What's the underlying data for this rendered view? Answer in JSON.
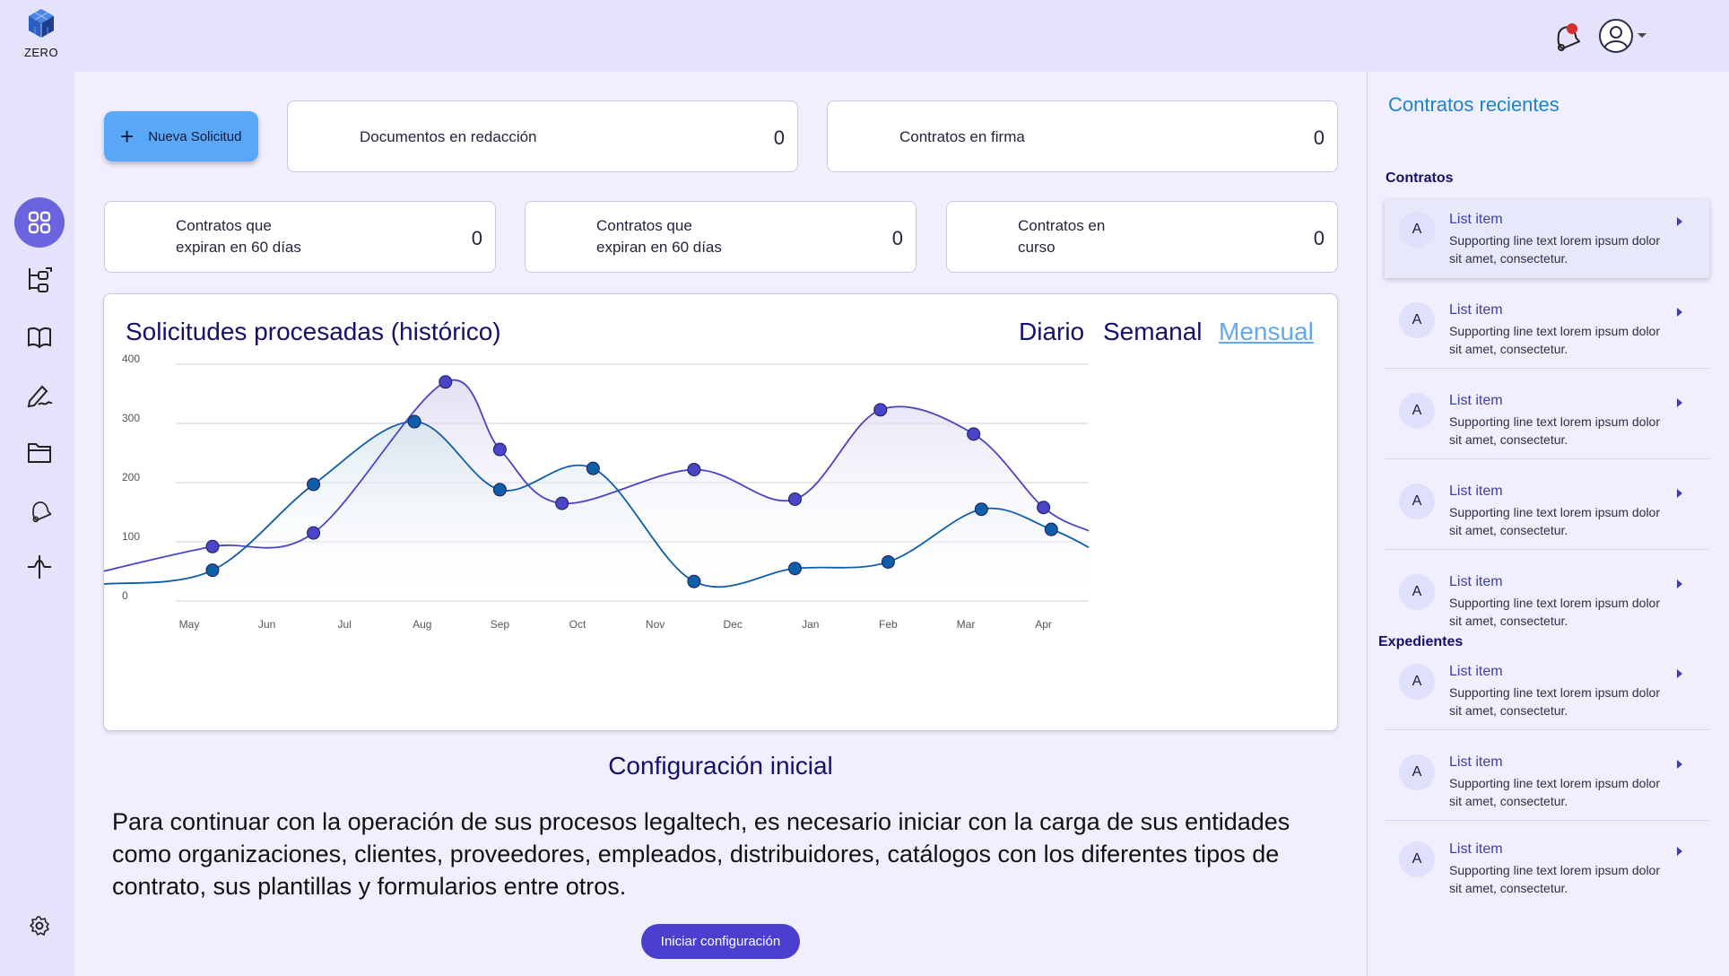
{
  "app": {
    "logo_text": "ZERO"
  },
  "header": {
    "notification_count": "",
    "icons": [
      "bell-icon",
      "user-avatar-icon",
      "caret-down-icon"
    ]
  },
  "sidebar": {
    "items": [
      {
        "name": "dashboard",
        "icon": "grid-icon",
        "active": true
      },
      {
        "name": "workflow",
        "icon": "tree-icon"
      },
      {
        "name": "catalog",
        "icon": "book-icon"
      },
      {
        "name": "signature",
        "icon": "pen-icon"
      },
      {
        "name": "files",
        "icon": "folder-icon"
      },
      {
        "name": "notifications",
        "icon": "bell-icon"
      },
      {
        "name": "activity",
        "icon": "pulse-icon"
      }
    ],
    "settings_icon": "gear-icon"
  },
  "toolbar": {
    "new_request_label": "Nueva Solicitud"
  },
  "stats": [
    {
      "label": "Documentos en redacción",
      "value": "0"
    },
    {
      "label": "Contratos en firma",
      "value": "0"
    },
    {
      "label": "Contratos que expiran en 60 días",
      "line1": "Contratos que",
      "line2": "expiran en 60 días",
      "value": "0"
    },
    {
      "label": "Contratos que expiran en 60 días",
      "line1": "Contratos que",
      "line2": "expiran en 60 días",
      "value": "0"
    },
    {
      "label": "Contratos en curso",
      "line1": "Contratos en",
      "line2": "curso",
      "value": "0"
    }
  ],
  "chart": {
    "title": "Solicitudes procesadas (histórico)",
    "ranges": [
      "Diario",
      "Semanal",
      "Mensual"
    ],
    "active_range": "Mensual"
  },
  "chart_data": {
    "type": "area",
    "title": "Solicitudes procesadas (histórico)",
    "categories": [
      "May",
      "Jun",
      "Jul",
      "Aug",
      "Sep",
      "Oct",
      "Nov",
      "Dec",
      "Jan",
      "Feb",
      "Mar",
      "Apr"
    ],
    "ylim": [
      0,
      400
    ],
    "yticks": [
      0,
      100,
      200,
      300,
      400
    ],
    "grid": true,
    "series": [
      {
        "color": "#4a44c6",
        "fill": "#dcd8f2",
        "points": [
          [
            0.3,
            92
          ],
          [
            1.6,
            115
          ],
          [
            3.3,
            370
          ],
          [
            4.0,
            256
          ],
          [
            4.8,
            165
          ],
          [
            6.5,
            222
          ],
          [
            7.8,
            172
          ],
          [
            8.9,
            323
          ],
          [
            10.1,
            282
          ],
          [
            11.0,
            158
          ]
        ]
      },
      {
        "color": "#0f5ea8",
        "fill": "#d7e6ee",
        "points": [
          [
            0.3,
            52
          ],
          [
            1.6,
            197
          ],
          [
            2.9,
            303
          ],
          [
            4.0,
            188
          ],
          [
            5.2,
            224
          ],
          [
            6.5,
            33
          ],
          [
            7.8,
            55
          ],
          [
            9.0,
            66
          ],
          [
            10.2,
            155
          ],
          [
            11.1,
            121
          ]
        ]
      }
    ]
  },
  "config": {
    "title": "Configuración inicial",
    "text": "Para continuar con la operación de sus procesos legaltech, es necesario iniciar con la carga de sus entidades como organizaciones, clientes, proveedores, empleados, distribuidores, catálogos con los diferentes tipos de contrato, sus plantillas y formularios entre otros.",
    "button_label": "Iniciar configuración"
  },
  "recent": {
    "title": "Contratos recientes",
    "sections": [
      {
        "title": "Contratos",
        "items": [
          {
            "avatar": "A",
            "title": "List item",
            "sub": "Supporting line text lorem ipsum dolor sit amet, consectetur."
          },
          {
            "avatar": "A",
            "title": "List item",
            "sub": "Supporting line text lorem ipsum dolor sit amet, consectetur."
          },
          {
            "avatar": "A",
            "title": "List item",
            "sub": "Supporting line text lorem ipsum dolor sit amet, consectetur."
          },
          {
            "avatar": "A",
            "title": "List item",
            "sub": "Supporting line text lorem ipsum dolor sit amet, consectetur."
          },
          {
            "avatar": "A",
            "title": "List item",
            "sub": "Supporting line text lorem ipsum dolor sit amet, consectetur."
          }
        ]
      },
      {
        "title": "Expedientes",
        "items": [
          {
            "avatar": "A",
            "title": "List item",
            "sub": "Supporting line text lorem ipsum dolor sit amet, consectetur."
          },
          {
            "avatar": "A",
            "title": "List item",
            "sub": "Supporting line text lorem ipsum dolor sit amet, consectetur."
          },
          {
            "avatar": "A",
            "title": "List item",
            "sub": "Supporting line text lorem ipsum dolor sit amet, consectetur."
          }
        ]
      }
    ]
  }
}
